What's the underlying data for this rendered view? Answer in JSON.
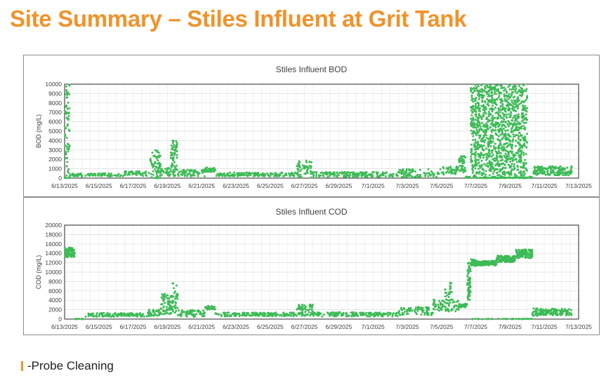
{
  "slide": {
    "title": "Site Summary – Stiles Influent at Grit Tank",
    "legend_label": "-Probe Cleaning",
    "title_color": "#f0932b",
    "marker_color": "#f0932b"
  },
  "chart_data": [
    {
      "type": "scatter",
      "id": "bod",
      "title": "Stiles Influent BOD",
      "xlabel": "",
      "ylabel": "BOD (mg/L)",
      "ylim": [
        0,
        10000
      ],
      "yticks": [
        0,
        1000,
        2000,
        3000,
        4000,
        5000,
        6000,
        7000,
        8000,
        9000,
        10000
      ],
      "xlim_days": [
        0,
        30
      ],
      "xtick_labels": [
        "6/13/2025",
        "6/15/2025",
        "6/17/2025",
        "6/19/2025",
        "6/21/2025",
        "6/23/2025",
        "6/25/2025",
        "6/27/2025",
        "6/29/2025",
        "7/1/2025",
        "7/3/2025",
        "7/5/2025",
        "7/7/2025",
        "7/9/2025",
        "7/11/2025",
        "7/13/2025"
      ],
      "grid": true,
      "color": "#3dbb56",
      "series": [
        {
          "name": "BOD",
          "segments": [
            {
              "x0": 0.0,
              "x1": 0.3,
              "base": 4500,
              "spread": 5500,
              "n": 70
            },
            {
              "x0": 0.3,
              "x1": 3.5,
              "base": 330,
              "spread": 180,
              "n": 90
            },
            {
              "x0": 3.5,
              "x1": 5.0,
              "base": 480,
              "spread": 250,
              "n": 50
            },
            {
              "x0": 5.0,
              "x1": 5.6,
              "base": 1400,
              "spread": 1600,
              "n": 70
            },
            {
              "x0": 5.6,
              "x1": 6.2,
              "base": 650,
              "spread": 450,
              "n": 30
            },
            {
              "x0": 6.2,
              "x1": 6.6,
              "base": 2100,
              "spread": 1900,
              "n": 70
            },
            {
              "x0": 6.6,
              "x1": 8.2,
              "base": 550,
              "spread": 350,
              "n": 60
            },
            {
              "x0": 8.2,
              "x1": 8.8,
              "base": 900,
              "spread": 250,
              "n": 30
            },
            {
              "x0": 8.8,
              "x1": 13.5,
              "base": 400,
              "spread": 200,
              "n": 150
            },
            {
              "x0": 13.5,
              "x1": 14.5,
              "base": 950,
              "spread": 900,
              "n": 60
            },
            {
              "x0": 14.5,
              "x1": 19.5,
              "base": 380,
              "spread": 260,
              "n": 160
            },
            {
              "x0": 19.5,
              "x1": 22.0,
              "base": 520,
              "spread": 450,
              "n": 90
            },
            {
              "x0": 22.0,
              "x1": 23.0,
              "base": 800,
              "spread": 450,
              "n": 40
            },
            {
              "x0": 23.0,
              "x1": 23.4,
              "base": 1500,
              "spread": 900,
              "n": 40
            },
            {
              "x0": 23.4,
              "x1": 23.7,
              "base": 80,
              "spread": 80,
              "n": 15
            },
            {
              "x0": 23.7,
              "x1": 27.0,
              "base": 5000,
              "spread": 5000,
              "n": 1200
            },
            {
              "x0": 23.7,
              "x1": 27.0,
              "base": 30,
              "spread": 30,
              "n": 80
            },
            {
              "x0": 27.0,
              "x1": 27.3,
              "base": 100,
              "spread": 100,
              "n": 10
            },
            {
              "x0": 27.3,
              "x1": 29.6,
              "base": 780,
              "spread": 480,
              "n": 160
            }
          ]
        }
      ]
    },
    {
      "type": "scatter",
      "id": "cod",
      "title": "Stiles Influent COD",
      "xlabel": "",
      "ylabel": "COD (mg/L)",
      "ylim": [
        0,
        20000
      ],
      "yticks": [
        0,
        2000,
        4000,
        6000,
        8000,
        10000,
        12000,
        14000,
        16000,
        18000,
        20000
      ],
      "xlim_days": [
        0,
        30
      ],
      "xtick_labels": [
        "6/13/2025",
        "6/15/2025",
        "6/17/2025",
        "6/19/2025",
        "6/21/2025",
        "6/23/2025",
        "6/25/2025",
        "6/27/2025",
        "6/29/2025",
        "7/1/2025",
        "7/3/2025",
        "7/5/2025",
        "7/7/2025",
        "7/9/2025",
        "7/11/2025",
        "7/13/2025"
      ],
      "grid": true,
      "color": "#3dbb56",
      "series": [
        {
          "name": "COD",
          "segments": [
            {
              "x0": 0.0,
              "x1": 0.6,
              "base": 14200,
              "spread": 1000,
              "n": 90
            },
            {
              "x0": 0.6,
              "x1": 1.2,
              "base": 30,
              "spread": 30,
              "n": 10
            },
            {
              "x0": 1.2,
              "x1": 4.8,
              "base": 900,
              "spread": 400,
              "n": 110
            },
            {
              "x0": 4.8,
              "x1": 5.6,
              "base": 1300,
              "spread": 700,
              "n": 40
            },
            {
              "x0": 5.6,
              "x1": 6.3,
              "base": 3000,
              "spread": 2400,
              "n": 70
            },
            {
              "x0": 6.3,
              "x1": 6.6,
              "base": 4500,
              "spread": 3300,
              "n": 30
            },
            {
              "x0": 6.6,
              "x1": 8.2,
              "base": 1200,
              "spread": 700,
              "n": 60
            },
            {
              "x0": 8.2,
              "x1": 8.8,
              "base": 2400,
              "spread": 400,
              "n": 30
            },
            {
              "x0": 8.8,
              "x1": 13.5,
              "base": 1000,
              "spread": 400,
              "n": 150
            },
            {
              "x0": 13.5,
              "x1": 14.5,
              "base": 1900,
              "spread": 1200,
              "n": 60
            },
            {
              "x0": 14.5,
              "x1": 19.5,
              "base": 1000,
              "spread": 450,
              "n": 160
            },
            {
              "x0": 19.5,
              "x1": 21.5,
              "base": 1700,
              "spread": 900,
              "n": 80
            },
            {
              "x0": 21.5,
              "x1": 23.0,
              "base": 2900,
              "spread": 1300,
              "n": 80
            },
            {
              "x0": 22.2,
              "x1": 22.6,
              "base": 6200,
              "spread": 1800,
              "n": 20
            },
            {
              "x0": 23.0,
              "x1": 23.5,
              "base": 2900,
              "spread": 400,
              "n": 30
            },
            {
              "x0": 23.5,
              "x1": 23.7,
              "base": 8000,
              "spread": 4000,
              "n": 60
            },
            {
              "x0": 23.7,
              "x1": 24.0,
              "base": 12000,
              "spread": 700,
              "n": 40
            },
            {
              "x0": 24.0,
              "x1": 25.2,
              "base": 11900,
              "spread": 500,
              "n": 110
            },
            {
              "x0": 25.2,
              "x1": 26.3,
              "base": 12800,
              "spread": 700,
              "n": 110
            },
            {
              "x0": 26.3,
              "x1": 27.3,
              "base": 13900,
              "spread": 900,
              "n": 110
            },
            {
              "x0": 23.7,
              "x1": 27.3,
              "base": 30,
              "spread": 30,
              "n": 40
            },
            {
              "x0": 27.3,
              "x1": 27.6,
              "base": 1500,
              "spread": 900,
              "n": 20
            },
            {
              "x0": 27.6,
              "x1": 29.6,
              "base": 1500,
              "spread": 700,
              "n": 120
            }
          ]
        }
      ]
    }
  ]
}
